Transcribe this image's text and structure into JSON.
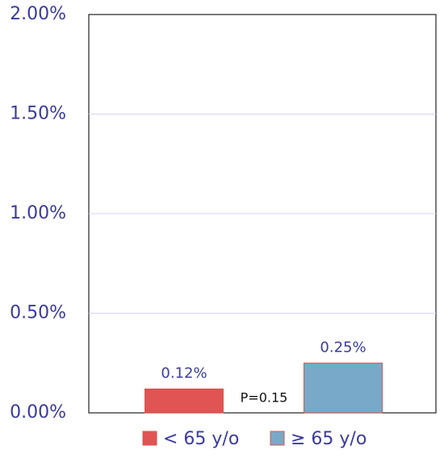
{
  "chart_data": {
    "type": "bar",
    "categories": [
      "< 65 y/o",
      "≥ 65 y/o"
    ],
    "values": [
      0.12,
      0.25
    ],
    "value_labels": [
      "0.12%",
      "0.25%"
    ],
    "colors": [
      "#e05454",
      "#78a9c8"
    ],
    "edgecolor": "#d9534f",
    "annotation": "P=0.15",
    "ylim": [
      0,
      2
    ],
    "yticks": [
      {
        "value": 0,
        "label": "0.00%"
      },
      {
        "value": 0.5,
        "label": "0.50%"
      },
      {
        "value": 1,
        "label": "1.00%"
      },
      {
        "value": 1.5,
        "label": "1.50%"
      },
      {
        "value": 2,
        "label": "2.00%"
      }
    ],
    "grid": true,
    "legend": "bottom"
  }
}
